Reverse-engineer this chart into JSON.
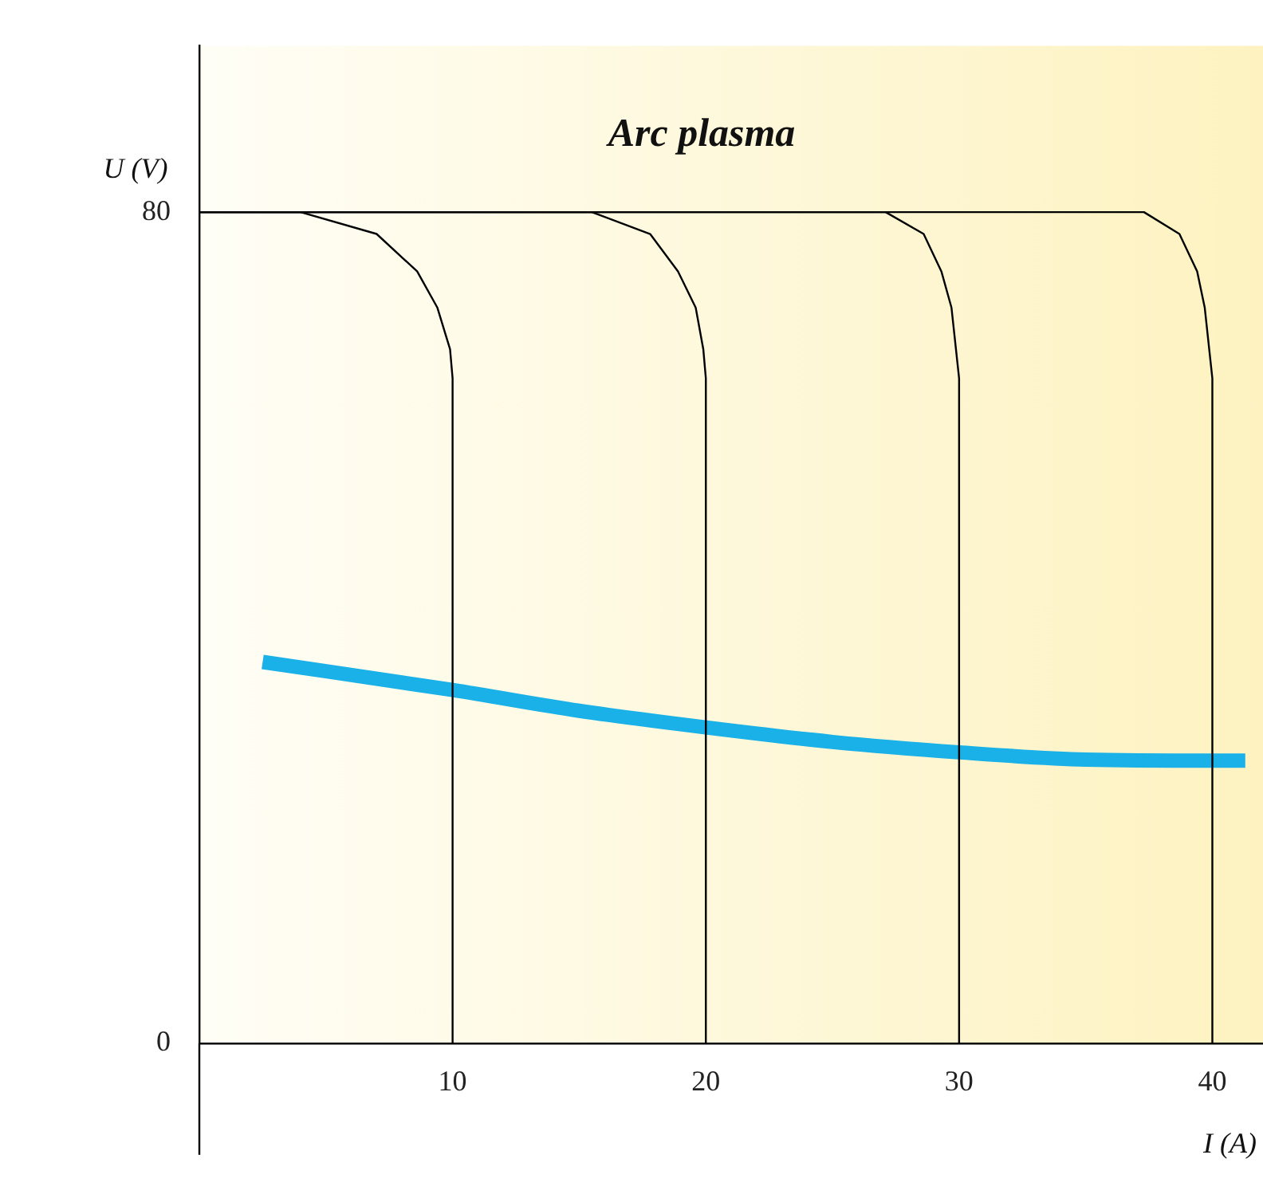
{
  "chart_data": {
    "type": "line",
    "title": "Arc plasma",
    "xlabel": "I (A)",
    "ylabel": "U (V)",
    "xlim": [
      0,
      42
    ],
    "xticks": [
      10,
      20,
      30,
      40
    ],
    "ylim": [
      0,
      96
    ],
    "yticks": [
      0,
      80
    ],
    "grid": false,
    "legend": false,
    "marker": "none",
    "line_style": "solid",
    "series": [
      {
        "color": "#000000",
        "x": [
          0,
          4,
          7,
          8.6,
          9.4,
          9.9,
          10,
          10
        ],
        "values": [
          80,
          80,
          77.9,
          74.3,
          70.8,
          66.8,
          64,
          0
        ]
      },
      {
        "color": "#000000",
        "x": [
          0,
          15.5,
          17.8,
          18.9,
          19.6,
          19.9,
          20,
          20
        ],
        "values": [
          80,
          80,
          77.9,
          74.3,
          70.8,
          66.8,
          64,
          0
        ]
      },
      {
        "color": "#000000",
        "x": [
          0,
          27.1,
          28.6,
          29.3,
          29.7,
          30,
          30
        ],
        "values": [
          80,
          80,
          77.9,
          74.3,
          70.8,
          64,
          0
        ]
      },
      {
        "color": "#000000",
        "x": [
          0,
          37.3,
          38.7,
          39.4,
          39.7,
          40,
          40
        ],
        "values": [
          80,
          80,
          77.9,
          74.3,
          70.8,
          64,
          0
        ]
      },
      {
        "color": "#1ab0e8",
        "x": [
          2.5,
          10,
          15,
          20,
          25,
          30,
          35,
          40,
          41.3
        ],
        "values": [
          36.7,
          34.0,
          32.0,
          30.4,
          29.0,
          28.0,
          27.3,
          27.2,
          27.2
        ]
      }
    ]
  }
}
